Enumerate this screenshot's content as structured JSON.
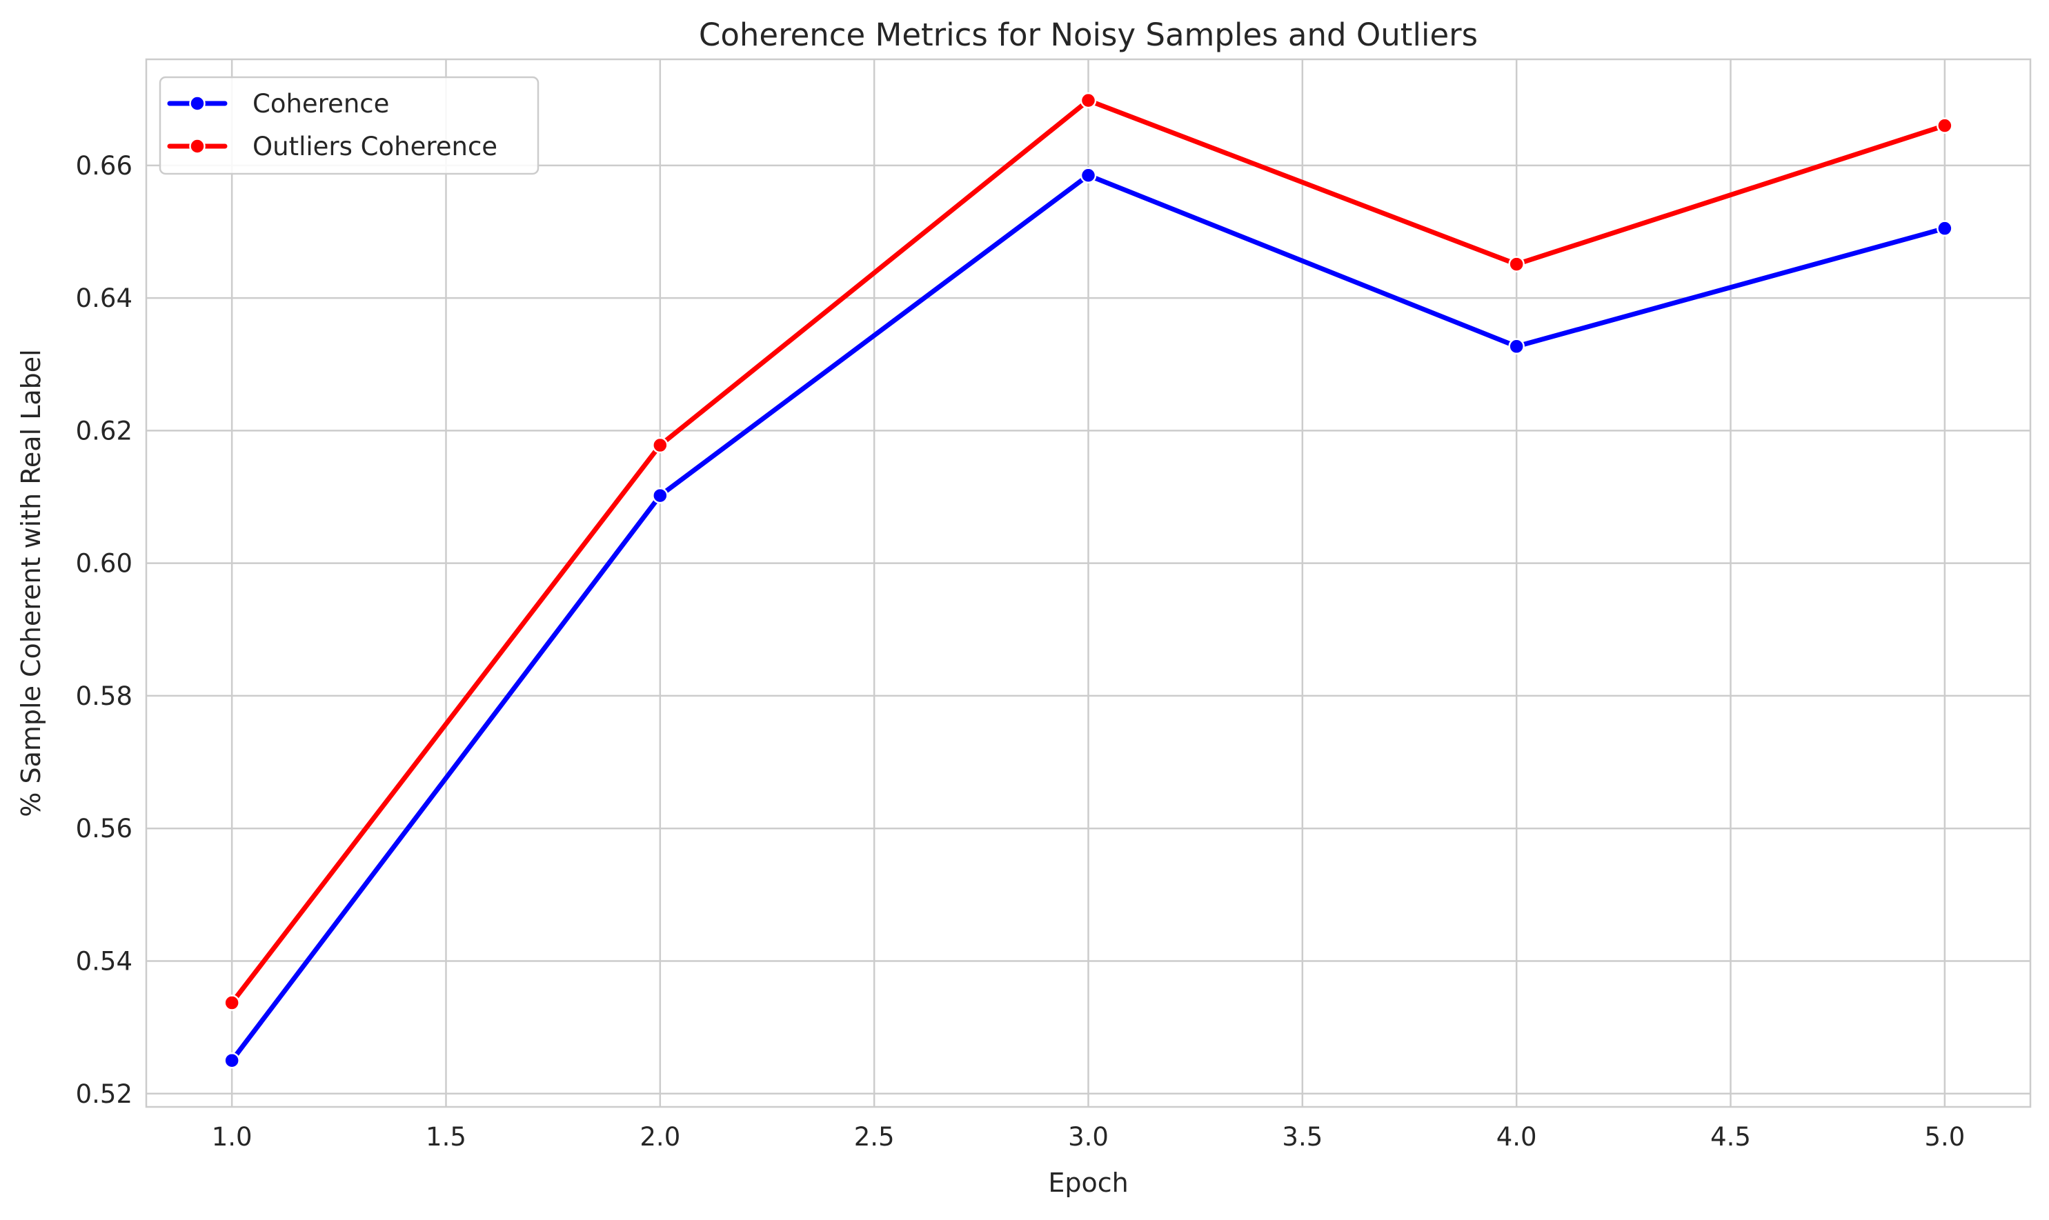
{
  "chart_data": {
    "type": "line",
    "title": "Coherence Metrics for Noisy Samples and Outliers",
    "xlabel": "Epoch",
    "ylabel": "% Sample Coherent with Real Label",
    "x": [
      1.0,
      2.0,
      3.0,
      4.0,
      5.0
    ],
    "xlim": [
      0.8,
      5.2
    ],
    "ylim": [
      0.518,
      0.676
    ],
    "xticks": [
      "1.0",
      "1.5",
      "2.0",
      "2.5",
      "3.0",
      "3.5",
      "4.0",
      "4.5",
      "5.0"
    ],
    "yticks": [
      "0.52",
      "0.54",
      "0.56",
      "0.58",
      "0.60",
      "0.62",
      "0.64",
      "0.66"
    ],
    "grid": true,
    "legend_position": "top-left",
    "series": [
      {
        "name": "Coherence",
        "color": "#0000ff",
        "marker": "circle",
        "values": [
          0.525,
          0.6102,
          0.6585,
          0.6327,
          0.6505
        ]
      },
      {
        "name": "Outliers Coherence",
        "color": "#ff0000",
        "marker": "circle",
        "values": [
          0.5337,
          0.6178,
          0.6698,
          0.6451,
          0.666
        ]
      }
    ]
  }
}
